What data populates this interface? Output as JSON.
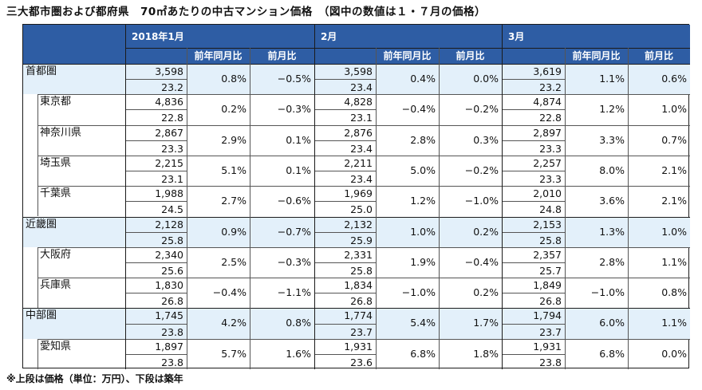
{
  "title": "三大都市圏および都府県　70㎡あたりの中古マンション価格　（図中の数値は１・７月の価格）",
  "footnote": "※上段は価格（単位：万円）、下段は築年",
  "headers": {
    "months": [
      "2018年1月",
      "2月",
      "3月"
    ],
    "sub": [
      "前年同月比",
      "前月比"
    ]
  },
  "rows": [
    {
      "name": "首都圏",
      "region": true,
      "data": [
        [
          "3,598",
          "23.2",
          "0.8%",
          "−0.5%"
        ],
        [
          "3,598",
          "23.4",
          "0.4%",
          "0.0%"
        ],
        [
          "3,619",
          "23.2",
          "1.1%",
          "0.6%"
        ]
      ]
    },
    {
      "name": "東京都",
      "region": false,
      "data": [
        [
          "4,836",
          "22.8",
          "0.2%",
          "−0.3%"
        ],
        [
          "4,828",
          "23.1",
          "−0.4%",
          "−0.2%"
        ],
        [
          "4,874",
          "22.8",
          "1.2%",
          "1.0%"
        ]
      ]
    },
    {
      "name": "神奈川県",
      "region": false,
      "data": [
        [
          "2,867",
          "23.3",
          "2.9%",
          "0.1%"
        ],
        [
          "2,876",
          "23.4",
          "2.8%",
          "0.3%"
        ],
        [
          "2,897",
          "23.3",
          "3.3%",
          "0.7%"
        ]
      ]
    },
    {
      "name": "埼玉県",
      "region": false,
      "data": [
        [
          "2,215",
          "23.1",
          "5.1%",
          "0.1%"
        ],
        [
          "2,211",
          "23.4",
          "5.0%",
          "−0.2%"
        ],
        [
          "2,257",
          "23.3",
          "8.0%",
          "2.1%"
        ]
      ]
    },
    {
      "name": "千葉県",
      "region": false,
      "data": [
        [
          "1,988",
          "24.5",
          "2.7%",
          "−0.6%"
        ],
        [
          "1,969",
          "25.0",
          "1.2%",
          "−1.0%"
        ],
        [
          "2,010",
          "24.8",
          "3.6%",
          "2.1%"
        ]
      ]
    },
    {
      "name": "近畿圏",
      "region": true,
      "data": [
        [
          "2,128",
          "25.8",
          "0.9%",
          "−0.7%"
        ],
        [
          "2,132",
          "25.9",
          "1.0%",
          "0.2%"
        ],
        [
          "2,153",
          "25.8",
          "1.3%",
          "1.0%"
        ]
      ]
    },
    {
      "name": "大阪府",
      "region": false,
      "data": [
        [
          "2,340",
          "25.6",
          "2.5%",
          "−0.3%"
        ],
        [
          "2,331",
          "25.8",
          "1.9%",
          "−0.4%"
        ],
        [
          "2,357",
          "25.7",
          "2.8%",
          "1.1%"
        ]
      ]
    },
    {
      "name": "兵庫県",
      "region": false,
      "data": [
        [
          "1,830",
          "26.8",
          "−0.4%",
          "−1.1%"
        ],
        [
          "1,834",
          "26.8",
          "−1.0%",
          "0.2%"
        ],
        [
          "1,849",
          "26.8",
          "−1.0%",
          "0.8%"
        ]
      ]
    },
    {
      "name": "中部圏",
      "region": true,
      "data": [
        [
          "1,745",
          "23.8",
          "4.2%",
          "0.8%"
        ],
        [
          "1,774",
          "23.7",
          "5.4%",
          "1.7%"
        ],
        [
          "1,794",
          "23.7",
          "6.0%",
          "1.1%"
        ]
      ]
    },
    {
      "name": "愛知県",
      "region": false,
      "data": [
        [
          "1,897",
          "23.8",
          "5.7%",
          "1.6%"
        ],
        [
          "1,931",
          "23.6",
          "6.8%",
          "1.8%"
        ],
        [
          "1,931",
          "23.8",
          "6.8%",
          "0.0%"
        ]
      ]
    }
  ],
  "colors": {
    "header": "#2e5da4",
    "highlight": "#e3f0fa",
    "border": "#1b1b1b"
  }
}
